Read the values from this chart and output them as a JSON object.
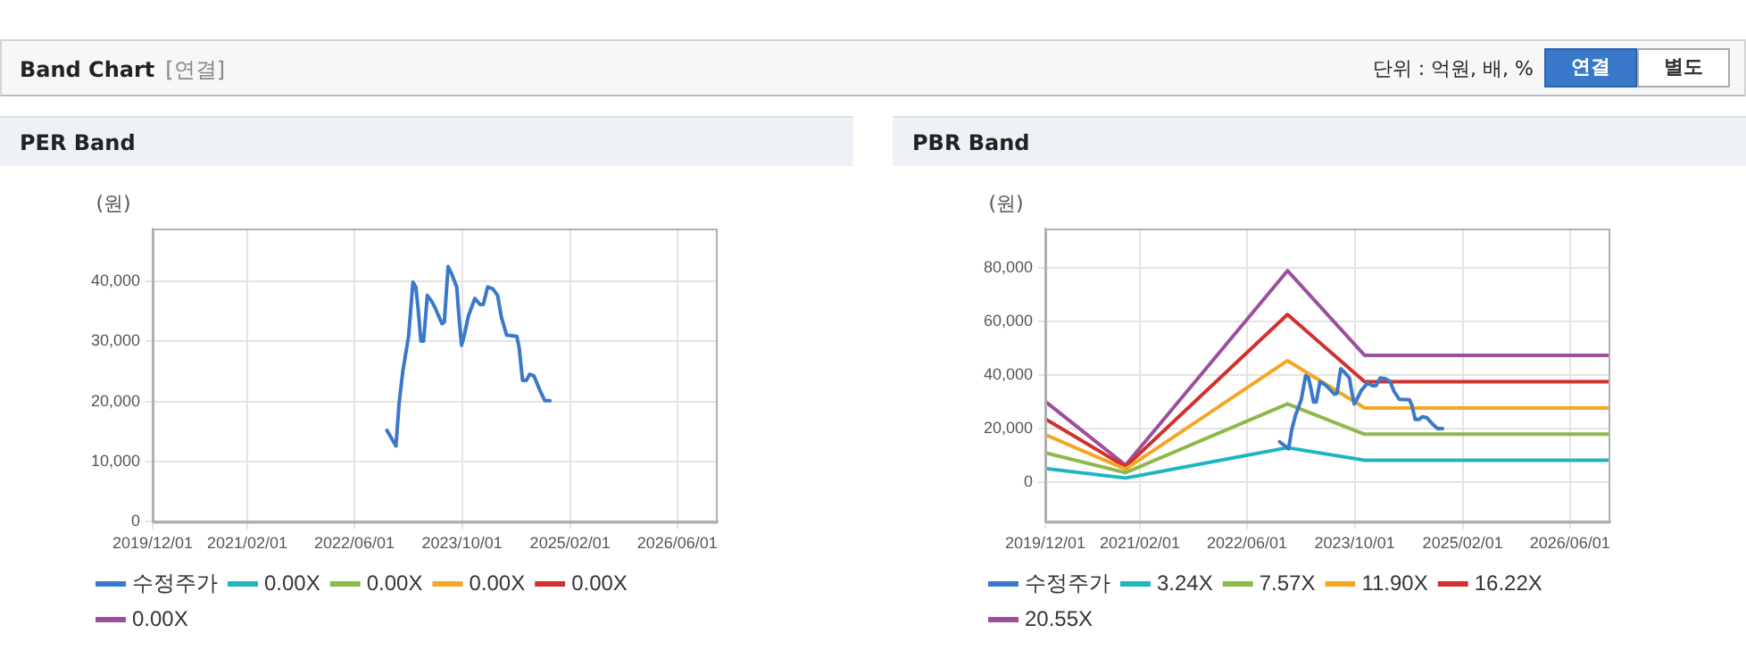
{
  "chart_data": [
    {
      "type": "other",
      "title": "Band Chart",
      "annotations": [
        "[연결]",
        "단위 : 억원, 배, %",
        "연결",
        "별도"
      ]
    },
    {
      "type": "line",
      "title": "PER Band",
      "ylabel": "(원)",
      "grid": true,
      "legend": "bottom",
      "marker": "none",
      "line_style": "solid",
      "xlim": [
        "2019-12-01",
        "2026-12-01"
      ],
      "ylim": [
        0,
        48700
      ],
      "xticks": [
        {
          "value": "2019-12-01",
          "label": "2019/12/01"
        },
        {
          "value": "2021-02-01",
          "label": "2021/02/01"
        },
        {
          "value": "2022-06-01",
          "label": "2022/06/01"
        },
        {
          "value": "2023-10-01",
          "label": "2023/10/01"
        },
        {
          "value": "2025-02-01",
          "label": "2025/02/01"
        },
        {
          "value": "2026-06-01",
          "label": "2026/06/01"
        }
      ],
      "yticks": [
        0,
        {
          "value": 10000,
          "label": "10,000"
        },
        {
          "value": 20000,
          "label": "20,000"
        },
        {
          "value": 30000,
          "label": "30,000"
        },
        {
          "value": 40000,
          "label": "40,000"
        }
      ],
      "series": [
        {
          "name": "수정주가",
          "color": "#3a78c9",
          "x": [
            "2022-10-26",
            "2022-12-06",
            "2022-12-20",
            "2023-01-06",
            "2023-02-01",
            "2023-02-21",
            "2023-03-06",
            "2023-03-17",
            "2023-03-29",
            "2023-04-10",
            "2023-04-27",
            "2023-05-17",
            "2023-06-03",
            "2023-07-02",
            "2023-07-13",
            "2023-07-30",
            "2023-08-17",
            "2023-09-07",
            "2023-09-18",
            "2023-09-29",
            "2023-10-10",
            "2023-10-30",
            "2023-11-28",
            "2023-12-21",
            "2024-01-05",
            "2024-01-25",
            "2024-02-17",
            "2024-03-10",
            "2024-03-27",
            "2024-04-20",
            "2024-06-05",
            "2024-06-16",
            "2024-07-01",
            "2024-07-18",
            "2024-08-02",
            "2024-08-22",
            "2024-09-20",
            "2024-10-10",
            "2024-11-02"
          ],
          "values": [
            15200,
            12600,
            19600,
            25000,
            30800,
            39800,
            39000,
            35100,
            30000,
            30000,
            37600,
            36600,
            35400,
            32900,
            33200,
            42400,
            41000,
            39000,
            33700,
            29300,
            30800,
            34200,
            37100,
            36100,
            36100,
            39000,
            38700,
            37600,
            34000,
            31000,
            30800,
            28800,
            23500,
            23500,
            24500,
            24200,
            21600,
            20100,
            20100
          ]
        },
        {
          "name": "0.00X",
          "color": "#1fb5c0"
        },
        {
          "name": "0.00X",
          "color": "#8db84a"
        },
        {
          "name": "0.00X",
          "color": "#f5a623"
        },
        {
          "name": "0.00X",
          "color": "#d0312d"
        },
        {
          "name": "0.00X",
          "color": "#9b4f9f"
        }
      ]
    },
    {
      "type": "line",
      "title": "PBR Band",
      "ylabel": "(원)",
      "grid": true,
      "legend": "bottom",
      "marker": "none",
      "line_style": "solid",
      "xlim": [
        "2019-12-01",
        "2026-12-01"
      ],
      "ylim": [
        -14600,
        94600
      ],
      "xticks": [
        {
          "value": "2019-12-01",
          "label": "2019/12/01"
        },
        {
          "value": "2021-02-01",
          "label": "2021/02/01"
        },
        {
          "value": "2022-06-01",
          "label": "2022/06/01"
        },
        {
          "value": "2023-10-01",
          "label": "2023/10/01"
        },
        {
          "value": "2025-02-01",
          "label": "2025/02/01"
        },
        {
          "value": "2026-06-01",
          "label": "2026/06/01"
        }
      ],
      "yticks": [
        0,
        {
          "value": 20000,
          "label": "20,000"
        },
        {
          "value": 40000,
          "label": "40,000"
        },
        {
          "value": 60000,
          "label": "60,000"
        },
        {
          "value": 80000,
          "label": "80,000"
        }
      ],
      "x": [
        "2019-12-01",
        "2020-11-28",
        "2022-12-01",
        "2023-11-15",
        "2026-12-01"
      ],
      "series": [
        {
          "name": "수정주가",
          "color": "#3a78c9",
          "x": [
            "2022-10-26",
            "2022-12-06",
            "2022-12-20",
            "2023-01-06",
            "2023-02-01",
            "2023-02-21",
            "2023-03-06",
            "2023-03-17",
            "2023-03-29",
            "2023-04-10",
            "2023-04-27",
            "2023-05-17",
            "2023-06-03",
            "2023-07-02",
            "2023-07-13",
            "2023-07-30",
            "2023-08-17",
            "2023-09-07",
            "2023-09-18",
            "2023-09-29",
            "2023-10-10",
            "2023-10-30",
            "2023-11-28",
            "2023-12-21",
            "2024-01-05",
            "2024-01-25",
            "2024-02-17",
            "2024-03-10",
            "2024-03-27",
            "2024-04-20",
            "2024-06-05",
            "2024-06-16",
            "2024-07-01",
            "2024-07-18",
            "2024-08-02",
            "2024-08-22",
            "2024-09-20",
            "2024-10-10",
            "2024-11-02"
          ],
          "values": [
            15200,
            12600,
            19600,
            25000,
            30800,
            39800,
            39000,
            35100,
            30000,
            30000,
            37600,
            36600,
            35400,
            32900,
            33200,
            42400,
            41000,
            39000,
            33700,
            29300,
            30800,
            34200,
            37100,
            36100,
            36100,
            39000,
            38700,
            37600,
            34000,
            31000,
            30800,
            28800,
            23500,
            23500,
            24500,
            24200,
            21600,
            20100,
            20100
          ]
        },
        {
          "name": "3.24X",
          "color": "#1fb5c0",
          "values": [
            5200,
            1700,
            13000,
            8300,
            8300
          ]
        },
        {
          "name": "7.57X",
          "color": "#8db84a",
          "values": [
            11100,
            3700,
            29300,
            18000,
            18000
          ]
        },
        {
          "name": "11.90X",
          "color": "#f5a623",
          "values": [
            17800,
            5000,
            45400,
            27800,
            27800
          ]
        },
        {
          "name": "16.22X",
          "color": "#d0312d",
          "values": [
            23700,
            5900,
            62600,
            37600,
            37600
          ]
        },
        {
          "name": "20.55X",
          "color": "#9b4f9f",
          "values": [
            30200,
            6500,
            78900,
            47400,
            47400
          ]
        }
      ]
    }
  ]
}
